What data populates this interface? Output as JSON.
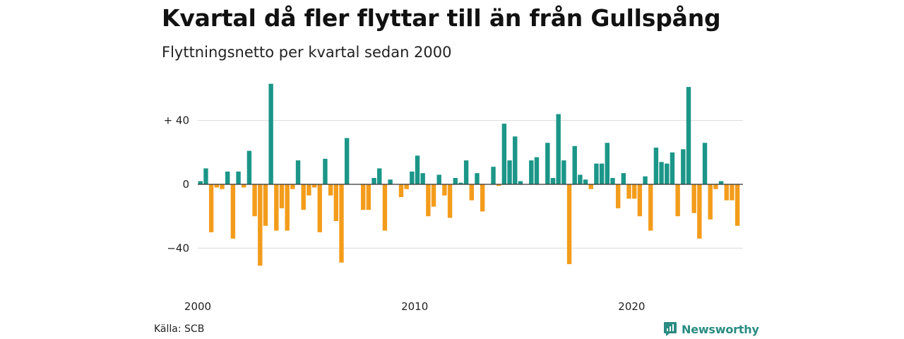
{
  "title": "Kvartal då fler flyttar till än från Gullspång",
  "subtitle": "Flyttningsnetto per kvartal sedan 2000",
  "source": "Källa: SCB",
  "brand": "Newsworthy",
  "colors": {
    "positive": "#1b9688",
    "negative": "#f39c1c",
    "grid": "#dcdcdc",
    "zero": "#333333",
    "brand": "#2a8c82"
  },
  "chart_data": {
    "type": "bar",
    "x_tick_labels": [
      {
        "label": "2000",
        "index": 0
      },
      {
        "label": "2010",
        "index": 40
      },
      {
        "label": "2020",
        "index": 80
      }
    ],
    "y_ticks": [
      {
        "value": 40,
        "label": "+ 40"
      },
      {
        "value": 0,
        "label": "0"
      },
      {
        "value": -40,
        "label": "−40"
      }
    ],
    "ylim": [
      -58,
      65
    ],
    "x_start": "2000 Q1",
    "values": [
      2,
      10,
      -30,
      -2,
      -3,
      8,
      -34,
      8,
      -2,
      21,
      -20,
      -51,
      -26,
      63,
      -29,
      -15,
      -29,
      -3,
      15,
      -16,
      -7,
      -2,
      -30,
      16,
      -7,
      -23,
      -49,
      29,
      0,
      0,
      -16,
      -16,
      4,
      10,
      -29,
      3,
      0,
      -8,
      -3,
      8,
      18,
      7,
      -20,
      -14,
      6,
      -7,
      -21,
      4,
      1,
      15,
      -10,
      7,
      -17,
      0,
      11,
      -1,
      38,
      15,
      30,
      2,
      0,
      15,
      17,
      0,
      26,
      4,
      44,
      15,
      -50,
      24,
      6,
      3,
      -3,
      13,
      13,
      26,
      4,
      -15,
      7,
      -9,
      -9,
      -20,
      5,
      -29,
      23,
      14,
      13,
      20,
      -20,
      22,
      61,
      -18,
      -34,
      26,
      -22,
      -3,
      2,
      -10,
      -10,
      -26
    ]
  }
}
